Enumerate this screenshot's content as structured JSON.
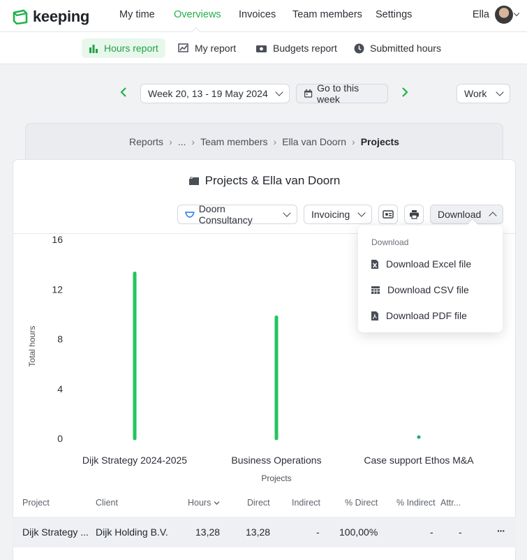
{
  "brand": {
    "name": "keeping",
    "accent": "#22b14c"
  },
  "nav": {
    "items": [
      {
        "label": "My time"
      },
      {
        "label": "Overviews",
        "active": true
      },
      {
        "label": "Invoices"
      },
      {
        "label": "Team members"
      },
      {
        "label": "Settings"
      }
    ],
    "user": {
      "name": "Ella"
    }
  },
  "subnav": {
    "items": [
      {
        "label": "Hours report",
        "icon": "bar-chart-icon",
        "active": true
      },
      {
        "label": "My report",
        "icon": "line-chart-icon"
      },
      {
        "label": "Budgets report",
        "icon": "money-icon"
      },
      {
        "label": "Submitted hours",
        "icon": "clock-icon"
      }
    ]
  },
  "period": {
    "week_label": "Week 20, 13 - 19 May 2024",
    "goto_label": "Go to this week",
    "type_label": "Work"
  },
  "breadcrumb": {
    "items": [
      "Reports",
      "...",
      "Team members",
      "Ella van Doorn"
    ],
    "current": "Projects"
  },
  "report": {
    "title": "Projects & Ella van Doorn",
    "client_filter": "Doorn Consultancy",
    "invoicing_filter": "Invoicing",
    "download_label": "Download"
  },
  "download_menu": {
    "heading": "Download",
    "items": [
      {
        "label": "Download Excel file",
        "icon": "excel-file-icon"
      },
      {
        "label": "Download CSV file",
        "icon": "csv-table-icon"
      },
      {
        "label": "Download PDF file",
        "icon": "pdf-file-icon"
      }
    ]
  },
  "chart_data": {
    "type": "bar",
    "categories": [
      "Dijk Strategy 2024-2025",
      "Business Operations",
      "Case support Ethos M&A"
    ],
    "values": [
      13.28,
      9.75,
      0.05
    ],
    "xlabel": "Projects",
    "ylabel": "Total hours",
    "ylim": [
      0,
      16
    ],
    "yticks": [
      "0",
      "4",
      "8",
      "12",
      "16"
    ],
    "color": "#22c55e",
    "grid": false
  },
  "table": {
    "headers": {
      "project": "Project",
      "client": "Client",
      "hours": "Hours",
      "direct": "Direct",
      "indirect": "Indirect",
      "pct_direct": "% Direct",
      "pct_indirect": "% Indirect",
      "attr": "Attr..."
    },
    "rows": [
      {
        "project": "Dijk Strategy ...",
        "client": "Dijk Holding B.V.",
        "hours": "13,28",
        "direct": "13,28",
        "indirect": "-",
        "pct_direct": "100,00%",
        "pct_indirect": "-",
        "attr": "-",
        "more": "···"
      }
    ]
  }
}
